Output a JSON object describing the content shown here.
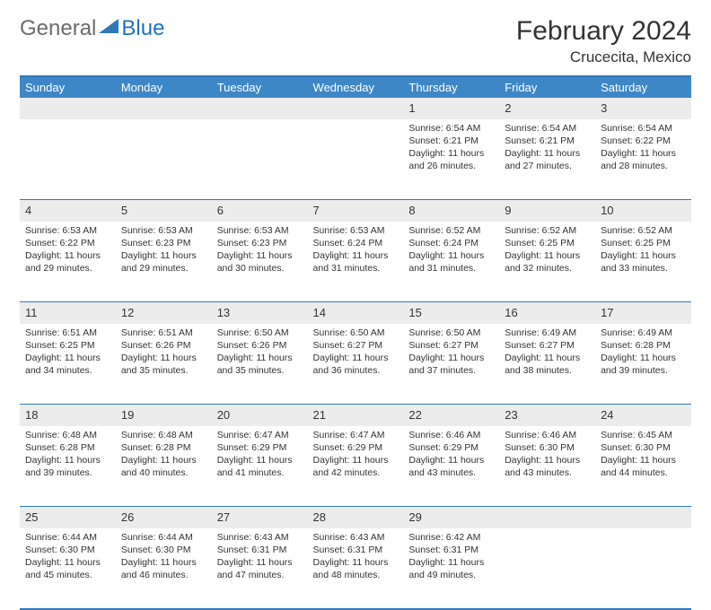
{
  "logo": {
    "part1": "General",
    "part2": "Blue",
    "triangle_color": "#2f79b9"
  },
  "title": "February 2024",
  "location": "Crucecita, Mexico",
  "header_bg": "#3e87c6",
  "border_color": "#2f79b9",
  "daynum_bg": "#ececec",
  "columns": [
    "Sunday",
    "Monday",
    "Tuesday",
    "Wednesday",
    "Thursday",
    "Friday",
    "Saturday"
  ],
  "weeks": [
    [
      null,
      null,
      null,
      null,
      {
        "n": "1",
        "sr": "6:54 AM",
        "ss": "6:21 PM",
        "dl": "11 hours and 26 minutes."
      },
      {
        "n": "2",
        "sr": "6:54 AM",
        "ss": "6:21 PM",
        "dl": "11 hours and 27 minutes."
      },
      {
        "n": "3",
        "sr": "6:54 AM",
        "ss": "6:22 PM",
        "dl": "11 hours and 28 minutes."
      }
    ],
    [
      {
        "n": "4",
        "sr": "6:53 AM",
        "ss": "6:22 PM",
        "dl": "11 hours and 29 minutes."
      },
      {
        "n": "5",
        "sr": "6:53 AM",
        "ss": "6:23 PM",
        "dl": "11 hours and 29 minutes."
      },
      {
        "n": "6",
        "sr": "6:53 AM",
        "ss": "6:23 PM",
        "dl": "11 hours and 30 minutes."
      },
      {
        "n": "7",
        "sr": "6:53 AM",
        "ss": "6:24 PM",
        "dl": "11 hours and 31 minutes."
      },
      {
        "n": "8",
        "sr": "6:52 AM",
        "ss": "6:24 PM",
        "dl": "11 hours and 31 minutes."
      },
      {
        "n": "9",
        "sr": "6:52 AM",
        "ss": "6:25 PM",
        "dl": "11 hours and 32 minutes."
      },
      {
        "n": "10",
        "sr": "6:52 AM",
        "ss": "6:25 PM",
        "dl": "11 hours and 33 minutes."
      }
    ],
    [
      {
        "n": "11",
        "sr": "6:51 AM",
        "ss": "6:25 PM",
        "dl": "11 hours and 34 minutes."
      },
      {
        "n": "12",
        "sr": "6:51 AM",
        "ss": "6:26 PM",
        "dl": "11 hours and 35 minutes."
      },
      {
        "n": "13",
        "sr": "6:50 AM",
        "ss": "6:26 PM",
        "dl": "11 hours and 35 minutes."
      },
      {
        "n": "14",
        "sr": "6:50 AM",
        "ss": "6:27 PM",
        "dl": "11 hours and 36 minutes."
      },
      {
        "n": "15",
        "sr": "6:50 AM",
        "ss": "6:27 PM",
        "dl": "11 hours and 37 minutes."
      },
      {
        "n": "16",
        "sr": "6:49 AM",
        "ss": "6:27 PM",
        "dl": "11 hours and 38 minutes."
      },
      {
        "n": "17",
        "sr": "6:49 AM",
        "ss": "6:28 PM",
        "dl": "11 hours and 39 minutes."
      }
    ],
    [
      {
        "n": "18",
        "sr": "6:48 AM",
        "ss": "6:28 PM",
        "dl": "11 hours and 39 minutes."
      },
      {
        "n": "19",
        "sr": "6:48 AM",
        "ss": "6:28 PM",
        "dl": "11 hours and 40 minutes."
      },
      {
        "n": "20",
        "sr": "6:47 AM",
        "ss": "6:29 PM",
        "dl": "11 hours and 41 minutes."
      },
      {
        "n": "21",
        "sr": "6:47 AM",
        "ss": "6:29 PM",
        "dl": "11 hours and 42 minutes."
      },
      {
        "n": "22",
        "sr": "6:46 AM",
        "ss": "6:29 PM",
        "dl": "11 hours and 43 minutes."
      },
      {
        "n": "23",
        "sr": "6:46 AM",
        "ss": "6:30 PM",
        "dl": "11 hours and 43 minutes."
      },
      {
        "n": "24",
        "sr": "6:45 AM",
        "ss": "6:30 PM",
        "dl": "11 hours and 44 minutes."
      }
    ],
    [
      {
        "n": "25",
        "sr": "6:44 AM",
        "ss": "6:30 PM",
        "dl": "11 hours and 45 minutes."
      },
      {
        "n": "26",
        "sr": "6:44 AM",
        "ss": "6:30 PM",
        "dl": "11 hours and 46 minutes."
      },
      {
        "n": "27",
        "sr": "6:43 AM",
        "ss": "6:31 PM",
        "dl": "11 hours and 47 minutes."
      },
      {
        "n": "28",
        "sr": "6:43 AM",
        "ss": "6:31 PM",
        "dl": "11 hours and 48 minutes."
      },
      {
        "n": "29",
        "sr": "6:42 AM",
        "ss": "6:31 PM",
        "dl": "11 hours and 49 minutes."
      },
      null,
      null
    ]
  ],
  "labels": {
    "sunrise": "Sunrise: ",
    "sunset": "Sunset: ",
    "daylight": "Daylight: "
  }
}
